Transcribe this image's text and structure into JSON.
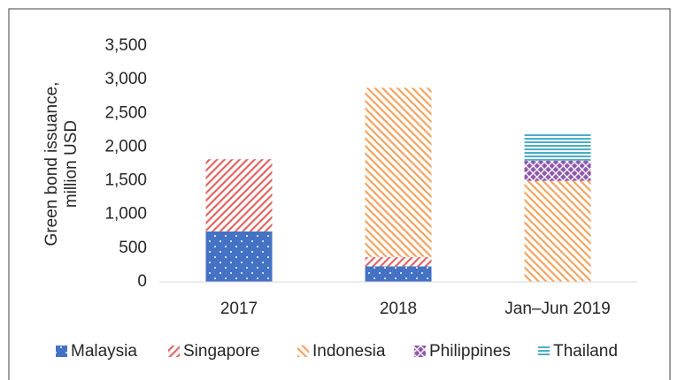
{
  "chart_data": {
    "type": "bar",
    "stacked": true,
    "ylabel": [
      "Green bond issuance,",
      "million USD"
    ],
    "categories": [
      "2017",
      "2018",
      "Jan–Jun 2019"
    ],
    "series": [
      {
        "name": "Malaysia",
        "color": "#4472c4",
        "pattern": "dots",
        "values": [
          750,
          230,
          null
        ]
      },
      {
        "name": "Singapore",
        "color": "#e06666",
        "pattern": "diag-up",
        "values": [
          1070,
          140,
          null
        ]
      },
      {
        "name": "Indonesia",
        "color": "#f4a460",
        "pattern": "diag-down",
        "values": [
          null,
          2510,
          1500
        ]
      },
      {
        "name": "Philippines",
        "color": "#8e5aa8",
        "pattern": "crosshatch",
        "values": [
          null,
          null,
          300
        ]
      },
      {
        "name": "Thailand",
        "color": "#4bacc6",
        "pattern": "hlines",
        "values": [
          null,
          null,
          390
        ]
      }
    ],
    "ylim": [
      0,
      3500
    ],
    "yticks": [
      0,
      500,
      {
        "value": 1000,
        "label": "1,000"
      },
      {
        "value": 1500,
        "label": "1,500"
      },
      {
        "value": 2000,
        "label": "2,000"
      },
      {
        "value": 2500,
        "label": "2,500"
      },
      {
        "value": 3000,
        "label": "3,000"
      },
      {
        "value": 3500,
        "label": "3,500"
      }
    ],
    "legend": "bottom"
  }
}
